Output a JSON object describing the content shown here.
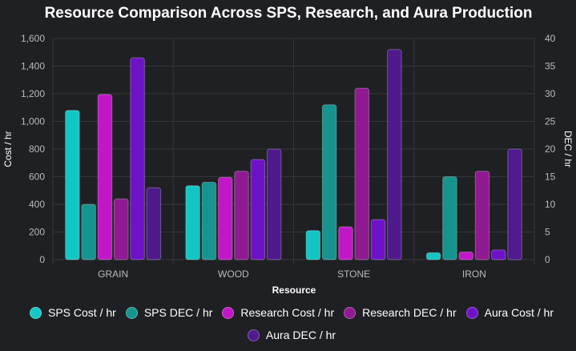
{
  "chart_data": {
    "type": "bar",
    "title": "Resource Comparison Across SPS, Research, and Aura Production",
    "xlabel": "Resource",
    "ylabel_left": "Cost / hr",
    "ylabel_right": "DEC / hr",
    "categories": [
      "GRAIN",
      "WOOD",
      "STONE",
      "IRON"
    ],
    "ylim_left": [
      0,
      1600
    ],
    "yticks_left": [
      "0",
      "200",
      "400",
      "600",
      "800",
      "1,000",
      "1,200",
      "1,400",
      "1,600"
    ],
    "ylim_right": [
      0,
      40
    ],
    "yticks_right": [
      "0",
      "5",
      "10",
      "15",
      "20",
      "25",
      "30",
      "35",
      "40"
    ],
    "grid": true,
    "legend_position": "bottom",
    "series": [
      {
        "name": "SPS Cost / hr",
        "axis": "left",
        "color": "#13c6c4",
        "values": [
          1080,
          535,
          210,
          50
        ]
      },
      {
        "name": "SPS DEC / hr",
        "axis": "right",
        "color": "#16948f",
        "values": [
          10,
          14,
          28,
          15
        ]
      },
      {
        "name": "Research Cost / hr",
        "axis": "left",
        "color": "#c217c8",
        "values": [
          1195,
          595,
          238,
          55
        ]
      },
      {
        "name": "Research DEC / hr",
        "axis": "right",
        "color": "#8f1a92",
        "values": [
          11,
          16,
          31,
          16
        ]
      },
      {
        "name": "Aura Cost / hr",
        "axis": "left",
        "color": "#6e12c8",
        "values": [
          1460,
          725,
          290,
          70
        ]
      },
      {
        "name": "Aura DEC / hr",
        "axis": "right",
        "color": "#4f1a8c",
        "values": [
          13,
          20,
          38,
          20
        ]
      }
    ]
  }
}
